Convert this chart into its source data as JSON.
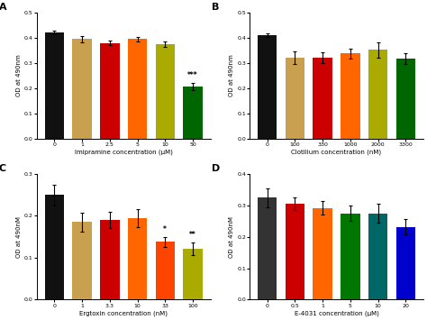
{
  "A": {
    "title": "A",
    "xlabel": "Imipramine concentration (μM)",
    "ylabel": "OD at 490nm",
    "categories": [
      "0",
      "1",
      "2.5",
      "5",
      "10",
      "50"
    ],
    "values": [
      0.42,
      0.395,
      0.38,
      0.395,
      0.375,
      0.205
    ],
    "errors": [
      0.007,
      0.012,
      0.009,
      0.01,
      0.012,
      0.014
    ],
    "colors": [
      "#111111",
      "#c8a050",
      "#cc0000",
      "#ff6600",
      "#aaaa00",
      "#006600"
    ],
    "ylim": [
      0.0,
      0.5
    ],
    "yticks": [
      0.0,
      0.1,
      0.2,
      0.3,
      0.4,
      0.5
    ],
    "significance": {
      "50": "***"
    }
  },
  "B": {
    "title": "B",
    "xlabel": "Clotilium concentration (nM)",
    "ylabel": "OD at 490nm",
    "categories": [
      "0",
      "100",
      "330",
      "1000",
      "2000",
      "3300"
    ],
    "values": [
      0.41,
      0.32,
      0.32,
      0.338,
      0.352,
      0.318
    ],
    "errors": [
      0.007,
      0.025,
      0.022,
      0.02,
      0.03,
      0.022
    ],
    "colors": [
      "#111111",
      "#c8a050",
      "#cc0000",
      "#ff6600",
      "#aaaa00",
      "#006600"
    ],
    "ylim": [
      0.0,
      0.5
    ],
    "yticks": [
      0.0,
      0.1,
      0.2,
      0.3,
      0.4,
      0.5
    ],
    "significance": {}
  },
  "C": {
    "title": "C",
    "xlabel": "Ergtoxin concentration (nM)",
    "ylabel": "OD at 490nM",
    "categories": [
      "0",
      "1",
      "3.3",
      "10",
      "33",
      "100"
    ],
    "values": [
      0.25,
      0.185,
      0.19,
      0.195,
      0.138,
      0.122
    ],
    "errors": [
      0.025,
      0.022,
      0.02,
      0.022,
      0.012,
      0.015
    ],
    "colors": [
      "#111111",
      "#c8a050",
      "#cc0000",
      "#ff6600",
      "#ff4400",
      "#aaaa00"
    ],
    "ylim": [
      0.0,
      0.3
    ],
    "yticks": [
      0.0,
      0.1,
      0.2,
      0.3
    ],
    "significance": {
      "33": "*",
      "100": "**"
    }
  },
  "D": {
    "title": "D",
    "xlabel": "E-4031 concentration (μM)",
    "ylabel": "OD at 490nM",
    "categories": [
      "0",
      "0.5",
      "1",
      "5",
      "10",
      "20"
    ],
    "values": [
      0.325,
      0.305,
      0.292,
      0.275,
      0.275,
      0.232
    ],
    "errors": [
      0.03,
      0.02,
      0.022,
      0.025,
      0.03,
      0.025
    ],
    "colors": [
      "#333333",
      "#cc0000",
      "#ff6600",
      "#007700",
      "#006666",
      "#0000cc"
    ],
    "ylim": [
      0.0,
      0.4
    ],
    "yticks": [
      0.0,
      0.1,
      0.2,
      0.3,
      0.4
    ],
    "significance": {}
  }
}
